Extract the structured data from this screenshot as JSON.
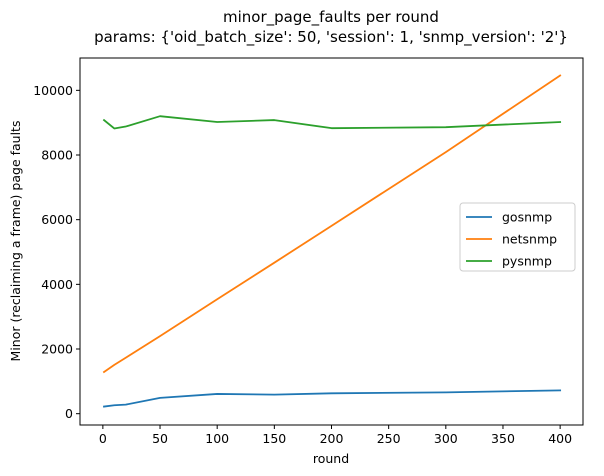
{
  "chart_data": {
    "type": "line",
    "title": "minor_page_faults per round",
    "subtitle": "params: {'oid_batch_size': 50, 'session': 1, 'snmp_version': '2'}",
    "xlabel": "round",
    "ylabel": "Minor (reclaiming a frame) page faults",
    "xlim": [
      -20,
      420
    ],
    "ylim": [
      -350,
      11000
    ],
    "xticks": [
      0,
      50,
      100,
      150,
      200,
      250,
      300,
      350,
      400
    ],
    "yticks": [
      0,
      2000,
      4000,
      6000,
      8000,
      10000
    ],
    "grid": false,
    "legend_position": "center-right",
    "series": [
      {
        "name": "gosnmp",
        "color": "#1f77b4",
        "x": [
          1,
          10,
          20,
          50,
          100,
          150,
          200,
          300,
          400
        ],
        "y": [
          220,
          260,
          280,
          490,
          610,
          590,
          630,
          660,
          720
        ]
      },
      {
        "name": "netsnmp",
        "color": "#ff7f0e",
        "x": [
          1,
          10,
          20,
          50,
          100,
          150,
          200,
          300,
          400
        ],
        "y": [
          1290,
          1510,
          1730,
          2400,
          3540,
          4670,
          5810,
          8090,
          10460
        ]
      },
      {
        "name": "pysnmp",
        "color": "#2ca02c",
        "x": [
          1,
          10,
          20,
          50,
          100,
          150,
          200,
          300,
          400
        ],
        "y": [
          9080,
          8820,
          8880,
          9200,
          9020,
          9080,
          8830,
          8860,
          9020
        ]
      }
    ]
  }
}
